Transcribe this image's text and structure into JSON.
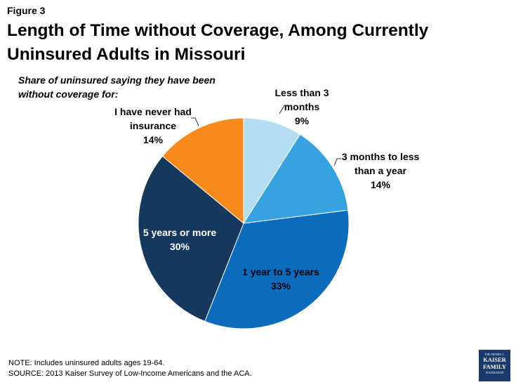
{
  "header": {
    "figure_label": "Figure 3",
    "title": "Length of Time without Coverage, Among Currently Uninsured Adults in Missouri",
    "subtitle": "Share of uninsured saying they have been without coverage for:"
  },
  "footer": {
    "note": "NOTE: Includes uninsured adults ages 19-64.",
    "source": "SOURCE: 2013 Kaiser Survey of Low-Income Americans and the ACA."
  },
  "logo": {
    "line1": "THE HENRY J.",
    "line2": "KAISER",
    "line3": "FAMILY",
    "line4": "FOUNDATION",
    "color": "#1a3a6b"
  },
  "chart_data": {
    "type": "pie",
    "title": "Length of Time without Coverage, Among Currently Uninsured Adults in Missouri",
    "slices": [
      {
        "label": [
          "Less than 3",
          "months"
        ],
        "value": 9,
        "display": "9%",
        "color": "#b3ddf2",
        "label_color": "#000000"
      },
      {
        "label": [
          "3 months to less",
          "than a year"
        ],
        "value": 14,
        "display": "14%",
        "color": "#36a2e0",
        "label_color": "#000000"
      },
      {
        "label": [
          "1 year to 5 years"
        ],
        "value": 33,
        "display": "33%",
        "color": "#0b6bbd",
        "label_color": "#000000"
      },
      {
        "label": [
          "5 years or more"
        ],
        "value": 30,
        "display": "30%",
        "color": "#16375e",
        "label_color": "#ffffff"
      },
      {
        "label": [
          "I have never had",
          "insurance"
        ],
        "value": 14,
        "display": "14%",
        "color": "#f68a1d",
        "label_color": "#000000"
      }
    ]
  }
}
